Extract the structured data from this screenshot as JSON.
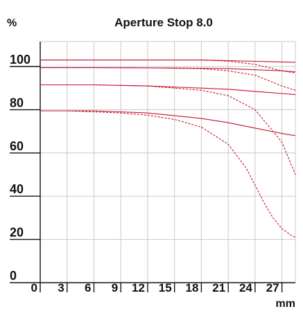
{
  "chart_data": {
    "type": "line",
    "title": "Aperture Stop 8.0",
    "ylabel": "%",
    "xlabel": "mm",
    "xlim": [
      0,
      28.5
    ],
    "ylim": [
      0,
      100
    ],
    "xticks": [
      0,
      3,
      6,
      9,
      12,
      15,
      18,
      21,
      24,
      27
    ],
    "yticks": [
      0,
      20,
      40,
      60,
      80,
      100
    ],
    "grid": true,
    "colors": {
      "series": "#c8102e",
      "grid": "#c8c8c8",
      "axis": "#111111"
    },
    "series": [
      {
        "style": "solid",
        "x": [
          0,
          6,
          12,
          18,
          21,
          24,
          27,
          28.5
        ],
        "y": [
          103,
          103,
          103,
          103,
          102.7,
          102.4,
          102.1,
          102
        ]
      },
      {
        "style": "dashed",
        "x": [
          0,
          6,
          12,
          18,
          21,
          24,
          27,
          28.5
        ],
        "y": [
          103,
          103,
          103,
          103,
          102.5,
          101,
          98,
          97
        ]
      },
      {
        "style": "solid",
        "x": [
          0,
          6,
          12,
          18,
          21,
          24,
          27,
          28.5
        ],
        "y": [
          99.5,
          99.5,
          99.4,
          99.2,
          99,
          98.5,
          98,
          97.5
        ]
      },
      {
        "style": "dashed",
        "x": [
          0,
          6,
          12,
          18,
          21,
          24,
          27,
          28.5
        ],
        "y": [
          99.5,
          99.5,
          99.4,
          99,
          98,
          96,
          91,
          89
        ]
      },
      {
        "style": "solid",
        "x": [
          0,
          6,
          12,
          18,
          21,
          24,
          27,
          28.5
        ],
        "y": [
          91.5,
          91.5,
          91,
          90,
          89.5,
          88.5,
          87.5,
          87
        ]
      },
      {
        "style": "dashed",
        "x": [
          0,
          6,
          12,
          18,
          21,
          24,
          27,
          28.5
        ],
        "y": [
          91.5,
          91.5,
          91,
          89,
          86.5,
          80,
          65,
          50
        ]
      },
      {
        "style": "solid",
        "x": [
          0,
          6,
          12,
          18,
          21,
          24,
          27,
          28.5
        ],
        "y": [
          79.5,
          79.5,
          78.5,
          76,
          74,
          71.5,
          69,
          68
        ]
      },
      {
        "style": "dashed",
        "x": [
          0,
          3,
          6,
          9,
          12,
          15,
          18,
          21,
          23,
          24,
          25,
          26,
          27,
          28,
          28.5
        ],
        "y": [
          79.5,
          79.5,
          79,
          78.5,
          77.5,
          75.5,
          72,
          64,
          53,
          45,
          37,
          30,
          25,
          22,
          21
        ]
      }
    ]
  }
}
